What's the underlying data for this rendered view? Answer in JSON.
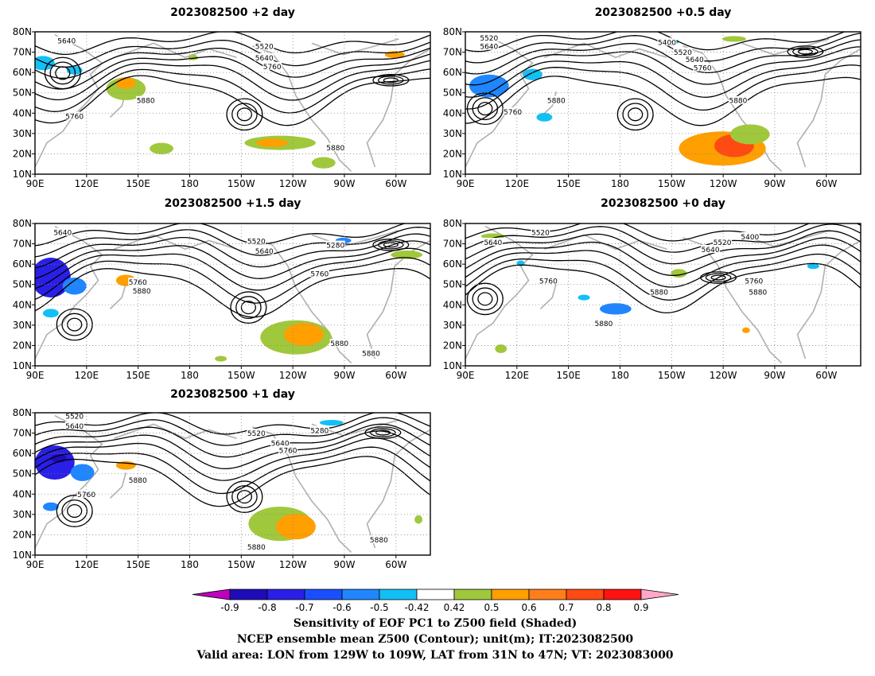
{
  "panels": [
    {
      "id": "p2",
      "title": "2023082500  +2 day"
    },
    {
      "id": "p05",
      "title": "2023082500  +0.5 day"
    },
    {
      "id": "p15",
      "title": "2023082500  +1.5 day"
    },
    {
      "id": "p0",
      "title": "2023082500  +0 day"
    },
    {
      "id": "p1",
      "title": "2023082500  +1 day"
    }
  ],
  "lat_ticks": [
    "80N",
    "70N",
    "60N",
    "50N",
    "40N",
    "30N",
    "20N",
    "10N"
  ],
  "lon_ticks": [
    "90E",
    "120E",
    "150E",
    "180",
    "150W",
    "120W",
    "90W",
    "60W"
  ],
  "contour_labels": {
    "p2": [
      "5640",
      "5520",
      "5640",
      "5760",
      "5880",
      "5760",
      "5880"
    ],
    "p05": [
      "5520",
      "5640",
      "5400",
      "5520",
      "5640",
      "5760",
      "5880",
      "5760",
      "5880"
    ],
    "p15": [
      "5640",
      "5520",
      "5640",
      "5280",
      "5760",
      "5760",
      "5880",
      "5880",
      "5880"
    ],
    "p0": [
      "5640",
      "5520",
      "5520",
      "5400",
      "5640",
      "5760",
      "5760",
      "5880",
      "5880",
      "5880"
    ],
    "p1": [
      "5520",
      "5640",
      "5520",
      "5280",
      "5640",
      "5760",
      "5880",
      "5760",
      "5880",
      "5880"
    ]
  },
  "colorbar": {
    "ticks": [
      "-0.9",
      "-0.8",
      "-0.7",
      "-0.6",
      "-0.5",
      "-0.42",
      "0.42",
      "0.5",
      "0.6",
      "0.7",
      "0.8",
      "0.9"
    ],
    "colors": [
      "#c000c0",
      "#1f0cb8",
      "#2a1fe6",
      "#1a4fff",
      "#1f86ff",
      "#12c0f5",
      "#ffffff",
      "#a0c83c",
      "#ff9f00",
      "#ff7e1a",
      "#ff4a12",
      "#ff1210",
      "#ffa8c8"
    ]
  },
  "footer": [
    "Sensitivity of EOF PC1 to Z500 field (Shaded)",
    "NCEP ensemble mean Z500 (Contour); unit(m); IT:2023082500",
    "Valid area: LON from 129W to 109W, LAT from 31N to 47N; VT: 2023083000"
  ]
}
